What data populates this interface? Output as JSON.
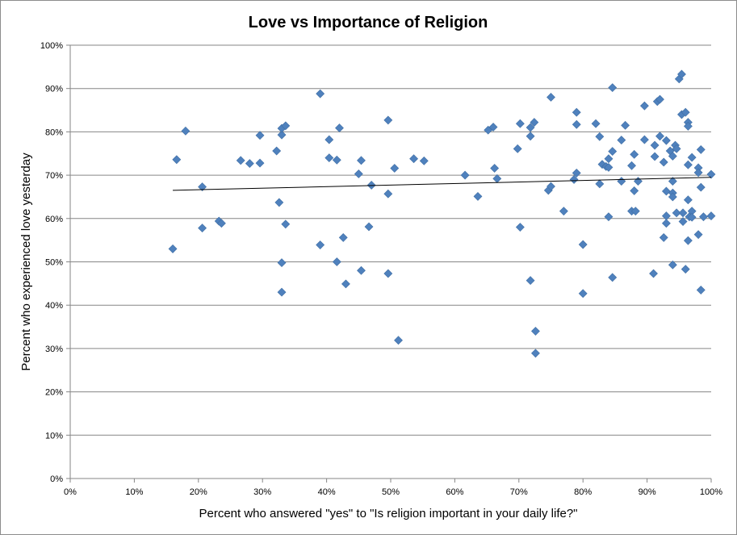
{
  "chart_data": {
    "type": "scatter",
    "title": "Love vs Importance of Religion",
    "xlabel": "Percent who answered \"yes\" to \"Is religion important in your daily life?\"",
    "ylabel": "Percent who experienced love yesterday",
    "xlim": [
      0,
      1
    ],
    "ylim": [
      0,
      1
    ],
    "x_ticks": [
      "0%",
      "10%",
      "20%",
      "30%",
      "40%",
      "50%",
      "60%",
      "70%",
      "80%",
      "90%",
      "100%"
    ],
    "y_ticks": [
      "0%",
      "10%",
      "20%",
      "30%",
      "40%",
      "50%",
      "60%",
      "70%",
      "80%",
      "90%",
      "100%"
    ],
    "grid": "horizontal",
    "legend": "none",
    "marker": "diamond",
    "marker_color": "#4f81bd",
    "trendline": {
      "type": "linear",
      "color": "#000000",
      "x": [
        0.16,
        1.0
      ],
      "y": [
        0.665,
        0.695
      ]
    },
    "points": [
      [
        0.16,
        0.53
      ],
      [
        0.166,
        0.736
      ],
      [
        0.18,
        0.802
      ],
      [
        0.206,
        0.673
      ],
      [
        0.206,
        0.578
      ],
      [
        0.232,
        0.594
      ],
      [
        0.236,
        0.589
      ],
      [
        0.266,
        0.734
      ],
      [
        0.28,
        0.727
      ],
      [
        0.296,
        0.728
      ],
      [
        0.296,
        0.792
      ],
      [
        0.322,
        0.756
      ],
      [
        0.326,
        0.637
      ],
      [
        0.33,
        0.498
      ],
      [
        0.33,
        0.43
      ],
      [
        0.33,
        0.793
      ],
      [
        0.33,
        0.808
      ],
      [
        0.336,
        0.814
      ],
      [
        0.336,
        0.587
      ],
      [
        0.39,
        0.888
      ],
      [
        0.39,
        0.539
      ],
      [
        0.404,
        0.782
      ],
      [
        0.404,
        0.74
      ],
      [
        0.416,
        0.735
      ],
      [
        0.416,
        0.5
      ],
      [
        0.42,
        0.809
      ],
      [
        0.426,
        0.556
      ],
      [
        0.43,
        0.449
      ],
      [
        0.45,
        0.703
      ],
      [
        0.454,
        0.734
      ],
      [
        0.454,
        0.48
      ],
      [
        0.466,
        0.581
      ],
      [
        0.47,
        0.677
      ],
      [
        0.496,
        0.827
      ],
      [
        0.496,
        0.657
      ],
      [
        0.496,
        0.473
      ],
      [
        0.506,
        0.716
      ],
      [
        0.512,
        0.319
      ],
      [
        0.536,
        0.738
      ],
      [
        0.552,
        0.733
      ],
      [
        0.616,
        0.7
      ],
      [
        0.636,
        0.651
      ],
      [
        0.652,
        0.804
      ],
      [
        0.66,
        0.811
      ],
      [
        0.662,
        0.716
      ],
      [
        0.666,
        0.692
      ],
      [
        0.698,
        0.761
      ],
      [
        0.702,
        0.58
      ],
      [
        0.702,
        0.819
      ],
      [
        0.718,
        0.81
      ],
      [
        0.718,
        0.79
      ],
      [
        0.718,
        0.457
      ],
      [
        0.724,
        0.822
      ],
      [
        0.726,
        0.34
      ],
      [
        0.726,
        0.289
      ],
      [
        0.746,
        0.665
      ],
      [
        0.75,
        0.674
      ],
      [
        0.75,
        0.88
      ],
      [
        0.77,
        0.617
      ],
      [
        0.786,
        0.69
      ],
      [
        0.79,
        0.845
      ],
      [
        0.79,
        0.817
      ],
      [
        0.79,
        0.705
      ],
      [
        0.8,
        0.54
      ],
      [
        0.8,
        0.427
      ],
      [
        0.82,
        0.819
      ],
      [
        0.826,
        0.789
      ],
      [
        0.826,
        0.68
      ],
      [
        0.83,
        0.725
      ],
      [
        0.836,
        0.72
      ],
      [
        0.84,
        0.718
      ],
      [
        0.84,
        0.738
      ],
      [
        0.84,
        0.604
      ],
      [
        0.846,
        0.755
      ],
      [
        0.846,
        0.902
      ],
      [
        0.846,
        0.464
      ],
      [
        0.86,
        0.781
      ],
      [
        0.86,
        0.686
      ],
      [
        0.866,
        0.815
      ],
      [
        0.876,
        0.722
      ],
      [
        0.876,
        0.617
      ],
      [
        0.88,
        0.748
      ],
      [
        0.88,
        0.664
      ],
      [
        0.882,
        0.617
      ],
      [
        0.886,
        0.686
      ],
      [
        0.896,
        0.86
      ],
      [
        0.896,
        0.782
      ],
      [
        0.91,
        0.473
      ],
      [
        0.912,
        0.769
      ],
      [
        0.912,
        0.743
      ],
      [
        0.916,
        0.87
      ],
      [
        0.92,
        0.875
      ],
      [
        0.92,
        0.79
      ],
      [
        0.926,
        0.73
      ],
      [
        0.926,
        0.556
      ],
      [
        0.93,
        0.78
      ],
      [
        0.93,
        0.663
      ],
      [
        0.93,
        0.606
      ],
      [
        0.93,
        0.589
      ],
      [
        0.936,
        0.756
      ],
      [
        0.94,
        0.686
      ],
      [
        0.94,
        0.659
      ],
      [
        0.94,
        0.65
      ],
      [
        0.94,
        0.744
      ],
      [
        0.94,
        0.493
      ],
      [
        0.944,
        0.769
      ],
      [
        0.946,
        0.761
      ],
      [
        0.946,
        0.613
      ],
      [
        0.95,
        0.922
      ],
      [
        0.954,
        0.933
      ],
      [
        0.954,
        0.84
      ],
      [
        0.956,
        0.613
      ],
      [
        0.956,
        0.593
      ],
      [
        0.96,
        0.845
      ],
      [
        0.96,
        0.483
      ],
      [
        0.964,
        0.822
      ],
      [
        0.964,
        0.813
      ],
      [
        0.964,
        0.724
      ],
      [
        0.964,
        0.643
      ],
      [
        0.964,
        0.549
      ],
      [
        0.966,
        0.604
      ],
      [
        0.97,
        0.741
      ],
      [
        0.97,
        0.617
      ],
      [
        0.97,
        0.603
      ],
      [
        0.98,
        0.717
      ],
      [
        0.98,
        0.706
      ],
      [
        0.98,
        0.563
      ],
      [
        0.984,
        0.759
      ],
      [
        0.984,
        0.672
      ],
      [
        0.984,
        0.435
      ],
      [
        0.988,
        0.604
      ],
      [
        1.0,
        0.702
      ],
      [
        1.0,
        0.606
      ]
    ]
  }
}
